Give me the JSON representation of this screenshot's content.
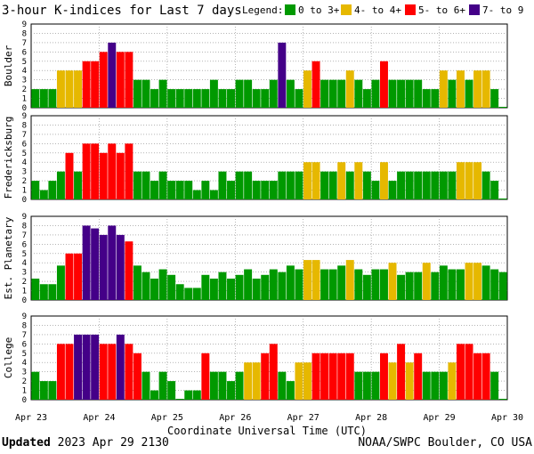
{
  "title": "3-hour K-indices for Last 7 days",
  "legend": {
    "label": "Legend:",
    "items": [
      {
        "label": "0 to 3+",
        "color": "#009900"
      },
      {
        "label": "4- to 4+",
        "color": "#e6b800"
      },
      {
        "label": "5- to 6+",
        "color": "#ff0000"
      },
      {
        "label": "7- to 9",
        "color": "#440088"
      }
    ]
  },
  "footer": {
    "updated_label": "Updated",
    "updated_value": "2023 Apr 29 2130",
    "credit": "NOAA/SWPC Boulder, CO USA"
  },
  "chart_data": [
    {
      "type": "bar",
      "title": "Boulder",
      "ylabel": "Boulder",
      "ylim": [
        0,
        9
      ],
      "yticks": [
        "0",
        "1",
        "2",
        "3",
        "4",
        "5",
        "6",
        "7",
        "8",
        "9"
      ],
      "values": [
        2,
        2,
        2,
        4,
        4,
        4,
        5,
        5,
        6,
        7,
        6,
        6,
        3,
        3,
        2,
        3,
        2,
        2,
        2,
        2,
        2,
        3,
        2,
        2,
        3,
        3,
        2,
        2,
        3,
        7,
        3,
        2,
        4,
        5,
        3,
        3,
        3,
        4,
        3,
        2,
        3,
        5,
        3,
        3,
        3,
        3,
        2,
        2,
        4,
        3,
        4,
        3,
        4,
        4,
        2,
        0
      ]
    },
    {
      "type": "bar",
      "title": "Fredericksburg",
      "ylabel": "Fredericksburg",
      "ylim": [
        0,
        9
      ],
      "yticks": [
        "0",
        "1",
        "2",
        "3",
        "4",
        "5",
        "6",
        "7",
        "8",
        "9"
      ],
      "values": [
        2,
        1,
        2,
        3,
        5,
        3,
        6,
        6,
        5,
        6,
        5,
        6,
        3,
        3,
        2,
        3,
        2,
        2,
        2,
        1,
        2,
        1,
        3,
        2,
        3,
        3,
        2,
        2,
        2,
        3,
        3,
        3,
        4,
        4,
        3,
        3,
        4,
        3,
        4,
        3,
        2,
        4,
        2,
        3,
        3,
        3,
        3,
        3,
        3,
        3,
        4,
        4,
        4,
        3,
        2,
        0
      ]
    },
    {
      "type": "bar",
      "title": "Est. Planetary",
      "ylabel": "Est. Planetary",
      "ylim": [
        0,
        9
      ],
      "yticks": [
        "0",
        "1",
        "2",
        "3",
        "4",
        "5",
        "6",
        "7",
        "8",
        "9"
      ],
      "values": [
        2.3,
        1.7,
        1.7,
        3.7,
        5,
        5,
        8,
        7.7,
        7,
        8,
        7,
        6.3,
        3.7,
        3,
        2.3,
        3.3,
        2.7,
        1.7,
        1.3,
        1.3,
        2.7,
        2.3,
        3,
        2.3,
        2.7,
        3.3,
        2.3,
        2.7,
        3.3,
        3,
        3.7,
        3.3,
        4.3,
        4.3,
        3.3,
        3.3,
        3.7,
        4.3,
        3.3,
        2.7,
        3.3,
        3.3,
        4,
        2.7,
        3,
        3,
        4,
        3,
        3.7,
        3.3,
        3.3,
        4,
        4,
        3.7,
        3.3,
        3
      ]
    },
    {
      "type": "bar",
      "title": "College",
      "ylabel": "College",
      "ylim": [
        0,
        9
      ],
      "yticks": [
        "0",
        "1",
        "2",
        "3",
        "4",
        "5",
        "6",
        "7",
        "8",
        "9"
      ],
      "values": [
        3,
        2,
        2,
        6,
        6,
        7,
        7,
        7,
        6,
        6,
        7,
        6,
        5,
        3,
        1,
        3,
        2,
        0,
        1,
        1,
        5,
        3,
        3,
        2,
        3,
        4,
        4,
        5,
        6,
        3,
        2,
        4,
        4,
        5,
        5,
        5,
        5,
        5,
        3,
        3,
        3,
        5,
        4,
        6,
        4,
        5,
        3,
        3,
        3,
        4,
        6,
        6,
        5,
        5,
        3,
        0
      ]
    }
  ],
  "xaxis": {
    "label": "Coordinate Universal Time (UTC)",
    "ticks": [
      "Apr 23",
      "Apr 24",
      "Apr 25",
      "Apr 26",
      "Apr 27",
      "Apr 28",
      "Apr 29",
      "Apr 30"
    ]
  }
}
